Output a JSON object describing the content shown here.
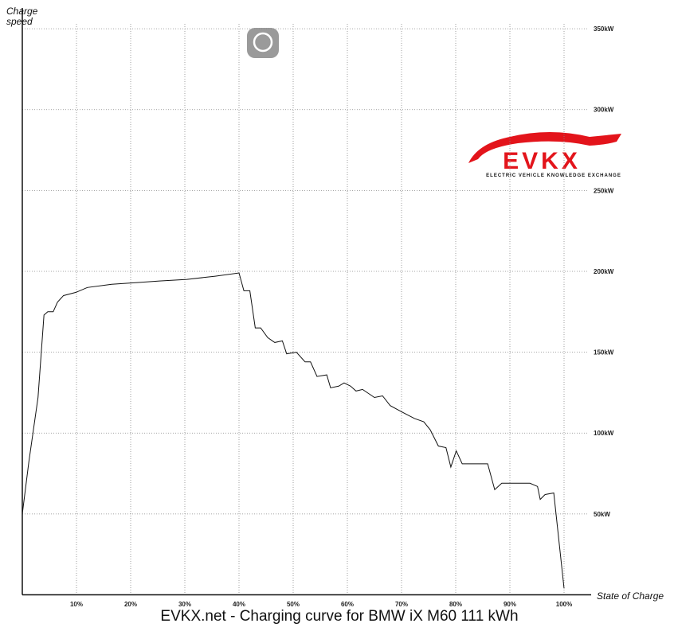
{
  "chart_data": {
    "type": "line",
    "title": "EVKX.net - Charging curve for BMW iX M60 111 kWh",
    "y_label": "Charge speed",
    "x_label": "State of Charge",
    "logo": {
      "text": "EVKX",
      "subtitle": "ELECTRIC VEHICLE KNOWLEDGE EXCHANGE"
    },
    "color": "#111111",
    "grid": true,
    "xlim": [
      0,
      105
    ],
    "ylim": [
      0,
      353
    ],
    "xticks": [
      {
        "value": 10,
        "label": "10%"
      },
      {
        "value": 20,
        "label": "20%"
      },
      {
        "value": 30,
        "label": "30%"
      },
      {
        "value": 40,
        "label": "40%"
      },
      {
        "value": 50,
        "label": "50%"
      },
      {
        "value": 60,
        "label": "60%"
      },
      {
        "value": 70,
        "label": "70%"
      },
      {
        "value": 80,
        "label": "80%"
      },
      {
        "value": 90,
        "label": "90%"
      },
      {
        "value": 100,
        "label": "100%"
      }
    ],
    "yticks": [
      {
        "value": 50,
        "label": "50kW"
      },
      {
        "value": 100,
        "label": "100kW"
      },
      {
        "value": 150,
        "label": "150kW"
      },
      {
        "value": 200,
        "label": "200kW"
      },
      {
        "value": 250,
        "label": "250kW"
      },
      {
        "value": 300,
        "label": "300kW"
      },
      {
        "value": 350,
        "label": "350kW"
      }
    ],
    "x": [
      0,
      1.2,
      2.9,
      4,
      4.7,
      5.7,
      6.5,
      7.6,
      9.9,
      12,
      16.5,
      20.9,
      25.3,
      30.4,
      35.6,
      40,
      40.9,
      42,
      43,
      44,
      45.3,
      46.6,
      48,
      48.8,
      50.6,
      52.2,
      53.2,
      54.4,
      56.2,
      56.9,
      58.4,
      59.4,
      60.6,
      61.6,
      62.8,
      65,
      66.5,
      67.9,
      70.1,
      72.4,
      74.1,
      75.3,
      76.8,
      78.2,
      79.1,
      80.1,
      81.2,
      85.9,
      87.2,
      88.5,
      90,
      93.7,
      95.1,
      95.6,
      96.5,
      98.1,
      100
    ],
    "values": [
      50,
      82,
      122,
      173,
      175,
      175,
      181,
      185,
      187,
      190,
      192,
      193,
      194,
      195,
      197,
      199,
      188,
      188,
      165,
      165,
      159,
      156,
      157,
      149,
      150,
      144,
      144,
      135,
      136,
      128,
      129,
      131,
      129,
      126,
      127,
      122,
      123,
      117,
      113,
      109,
      107,
      102,
      92,
      91,
      79,
      89,
      81,
      81,
      65,
      69,
      69,
      69,
      67,
      59,
      62,
      63,
      4
    ]
  }
}
